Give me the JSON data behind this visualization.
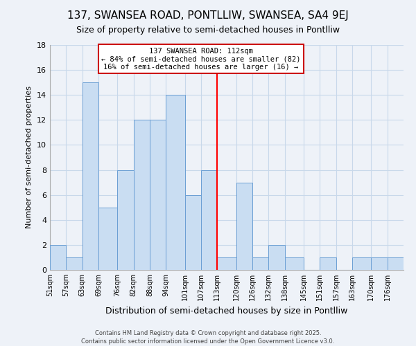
{
  "title": "137, SWANSEA ROAD, PONTLLIW, SWANSEA, SA4 9EJ",
  "subtitle": "Size of property relative to semi-detached houses in Pontlliw",
  "xlabel": "Distribution of semi-detached houses by size in Pontlliw",
  "ylabel": "Number of semi-detached properties",
  "bin_labels": [
    "51sqm",
    "57sqm",
    "63sqm",
    "69sqm",
    "76sqm",
    "82sqm",
    "88sqm",
    "94sqm",
    "101sqm",
    "107sqm",
    "113sqm",
    "120sqm",
    "126sqm",
    "132sqm",
    "138sqm",
    "145sqm",
    "151sqm",
    "157sqm",
    "163sqm",
    "170sqm",
    "176sqm"
  ],
  "bin_edges": [
    51,
    57,
    63,
    69,
    76,
    82,
    88,
    94,
    101,
    107,
    113,
    120,
    126,
    132,
    138,
    145,
    151,
    157,
    163,
    170,
    176,
    182
  ],
  "counts": [
    2,
    1,
    15,
    5,
    8,
    12,
    12,
    14,
    6,
    8,
    1,
    7,
    1,
    2,
    1,
    0,
    1,
    0,
    1,
    1,
    1
  ],
  "bar_color": "#c9ddf2",
  "bar_edge_color": "#6b9fd4",
  "grid_color": "#c8d8ea",
  "bg_color": "#eef2f8",
  "reference_line_x": 113,
  "annotation_title": "137 SWANSEA ROAD: 112sqm",
  "annotation_line1": "← 84% of semi-detached houses are smaller (82)",
  "annotation_line2": "16% of semi-detached houses are larger (16) →",
  "annotation_box_color": "#ffffff",
  "annotation_border_color": "#cc0000",
  "footer_line1": "Contains HM Land Registry data © Crown copyright and database right 2025.",
  "footer_line2": "Contains public sector information licensed under the Open Government Licence v3.0.",
  "ylim": [
    0,
    18
  ],
  "yticks": [
    0,
    2,
    4,
    6,
    8,
    10,
    12,
    14,
    16,
    18
  ],
  "title_fontsize": 11,
  "subtitle_fontsize": 9
}
